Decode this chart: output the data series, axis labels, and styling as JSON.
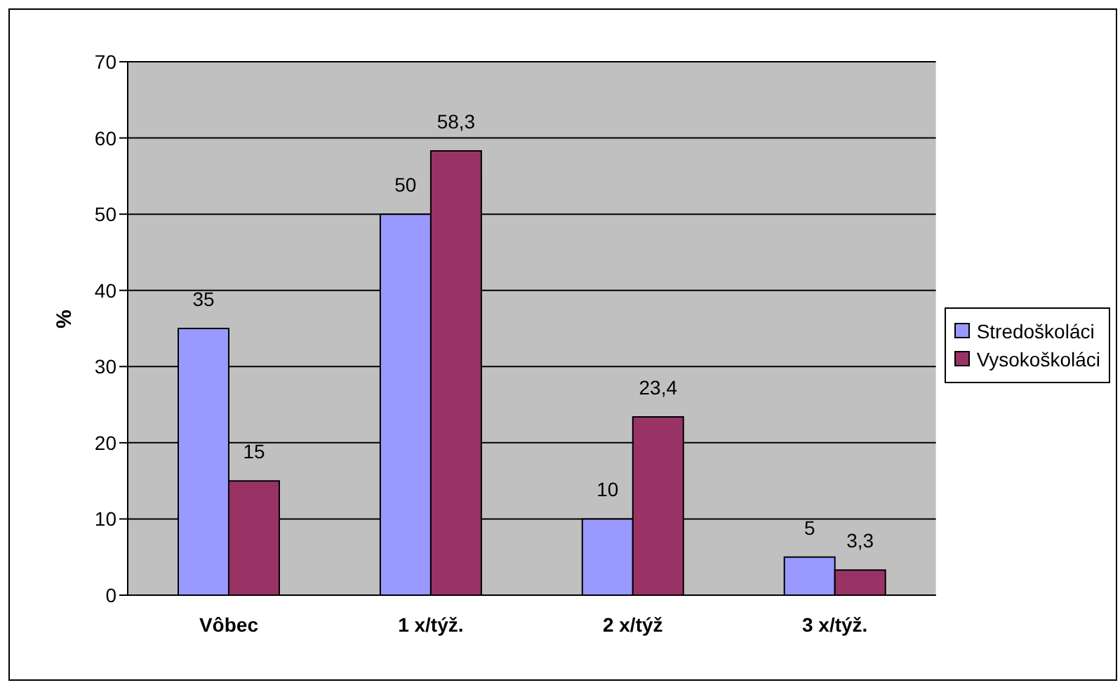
{
  "chart_data": {
    "type": "bar",
    "ylabel": "%",
    "categories": [
      "Vôbec",
      "1 x/týž.",
      "2 x/týž",
      "3 x/týž."
    ],
    "series": [
      {
        "name": "Stredoškoláci",
        "color": "#9999ff",
        "values": [
          35,
          50,
          10,
          5
        ],
        "value_labels": [
          "35",
          "50",
          "10",
          "5"
        ]
      },
      {
        "name": "Vysokoškoláci",
        "color": "#993366",
        "values": [
          15,
          58.3,
          23.4,
          3.3
        ],
        "value_labels": [
          "15",
          "58,3",
          "23,4",
          "3,3"
        ]
      }
    ],
    "ylim": [
      0,
      70
    ],
    "yticks": [
      0,
      10,
      20,
      30,
      40,
      50,
      60,
      70
    ],
    "grid": "y",
    "legend": "right"
  }
}
